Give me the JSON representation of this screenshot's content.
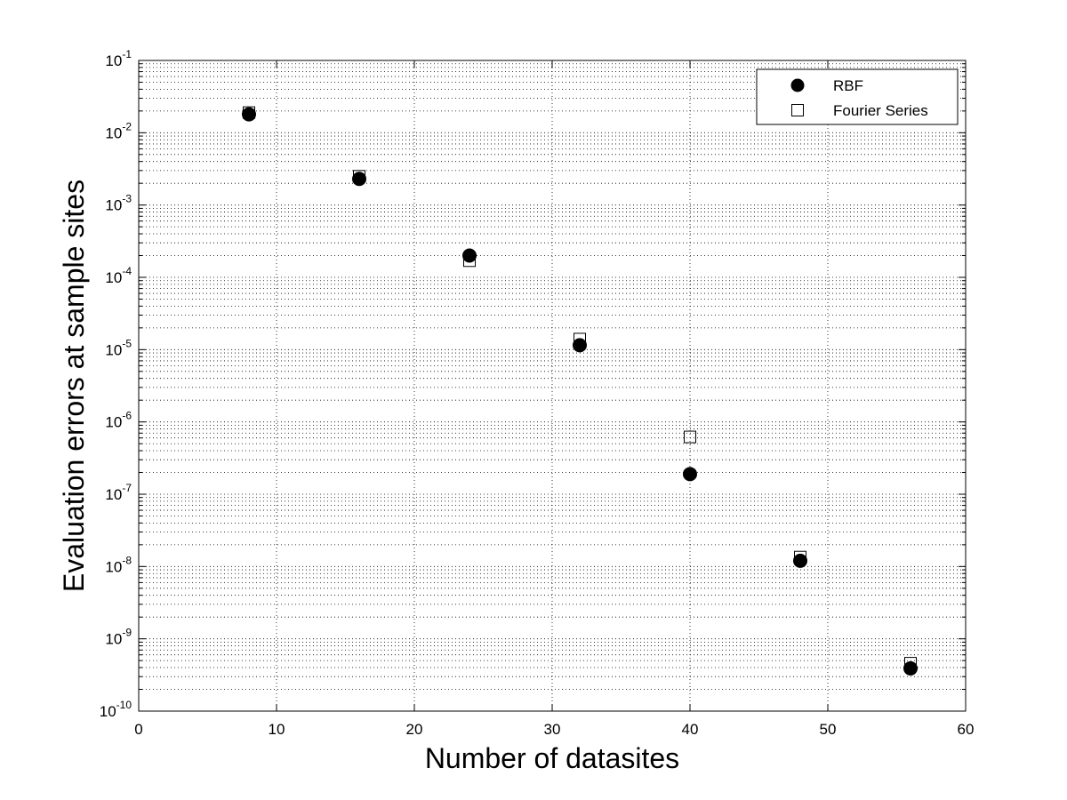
{
  "chart_data": {
    "type": "scatter",
    "title": "",
    "xlabel": "Number of datasites",
    "ylabel": "Evaluation errors at sample sites",
    "xlim": [
      0,
      60
    ],
    "ylim": [
      1e-10,
      0.1
    ],
    "yscale": "log",
    "grid": true,
    "legend_position": "top-right",
    "x_ticks": [
      {
        "value": 0,
        "label": "0"
      },
      {
        "value": 10,
        "label": "10"
      },
      {
        "value": 20,
        "label": "20"
      },
      {
        "value": 30,
        "label": "30"
      },
      {
        "value": 40,
        "label": "40"
      },
      {
        "value": 50,
        "label": "50"
      },
      {
        "value": 60,
        "label": "60"
      }
    ],
    "y_ticks": [
      {
        "value": 1e-10,
        "base": "10",
        "exp": "-10"
      },
      {
        "value": 1e-09,
        "base": "10",
        "exp": "-9"
      },
      {
        "value": 1e-08,
        "base": "10",
        "exp": "-8"
      },
      {
        "value": 1e-07,
        "base": "10",
        "exp": "-7"
      },
      {
        "value": 1e-06,
        "base": "10",
        "exp": "-6"
      },
      {
        "value": 1e-05,
        "base": "10",
        "exp": "-5"
      },
      {
        "value": 0.0001,
        "base": "10",
        "exp": "-4"
      },
      {
        "value": 0.001,
        "base": "10",
        "exp": "-3"
      },
      {
        "value": 0.01,
        "base": "10",
        "exp": "-2"
      },
      {
        "value": 0.1,
        "base": "10",
        "exp": "-1"
      }
    ],
    "series": [
      {
        "name": "RBF",
        "marker": "filled-circle",
        "color": "#000000",
        "points": [
          {
            "x": 8,
            "y": 0.018
          },
          {
            "x": 16,
            "y": 0.0023
          },
          {
            "x": 24,
            "y": 0.0002
          },
          {
            "x": 32,
            "y": 1.15e-05
          },
          {
            "x": 40,
            "y": 1.9e-07
          },
          {
            "x": 48,
            "y": 1.2e-08
          },
          {
            "x": 56,
            "y": 3.9e-10
          }
        ]
      },
      {
        "name": "Fourier Series",
        "marker": "open-square",
        "color": "#000000",
        "points": [
          {
            "x": 8,
            "y": 0.019
          },
          {
            "x": 16,
            "y": 0.0025
          },
          {
            "x": 24,
            "y": 0.00017
          },
          {
            "x": 32,
            "y": 1.4e-05
          },
          {
            "x": 40,
            "y": 6.2e-07
          },
          {
            "x": 48,
            "y": 1.35e-08
          },
          {
            "x": 56,
            "y": 4.6e-10
          }
        ]
      }
    ]
  }
}
